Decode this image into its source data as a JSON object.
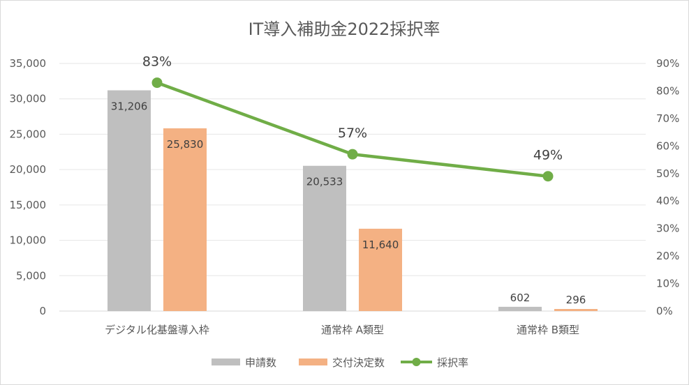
{
  "chart_data": {
    "type": "bar",
    "title": "IT導入補助金2022採択率",
    "categories": [
      "デジタル化基盤導入枠",
      "通常枠 A類型",
      "通常枠 B類型"
    ],
    "series": [
      {
        "name": "申請数",
        "kind": "bar",
        "axis": "left",
        "color": "#bfbfbf",
        "values": [
          31206,
          20533,
          602
        ],
        "labels": [
          "31,206",
          "20,533",
          "602"
        ]
      },
      {
        "name": "交付決定数",
        "kind": "bar",
        "axis": "left",
        "color": "#f4b183",
        "values": [
          25830,
          11640,
          296
        ],
        "labels": [
          "25,830",
          "11,640",
          "296"
        ]
      },
      {
        "name": "採択率",
        "kind": "line",
        "axis": "right",
        "color": "#70ad47",
        "values": [
          0.83,
          0.57,
          0.49
        ],
        "labels": [
          "83%",
          "57%",
          "49%"
        ]
      }
    ],
    "y_left": {
      "min": 0,
      "max": 35000,
      "step": 5000,
      "ticks": [
        "0",
        "5,000",
        "10,000",
        "15,000",
        "20,000",
        "25,000",
        "30,000",
        "35,000"
      ]
    },
    "y_right": {
      "min": 0,
      "max": 0.9,
      "step": 0.1,
      "ticks": [
        "0%",
        "10%",
        "20%",
        "30%",
        "40%",
        "50%",
        "60%",
        "70%",
        "80%",
        "90%"
      ]
    },
    "grid": true,
    "legend_position": "bottom"
  }
}
